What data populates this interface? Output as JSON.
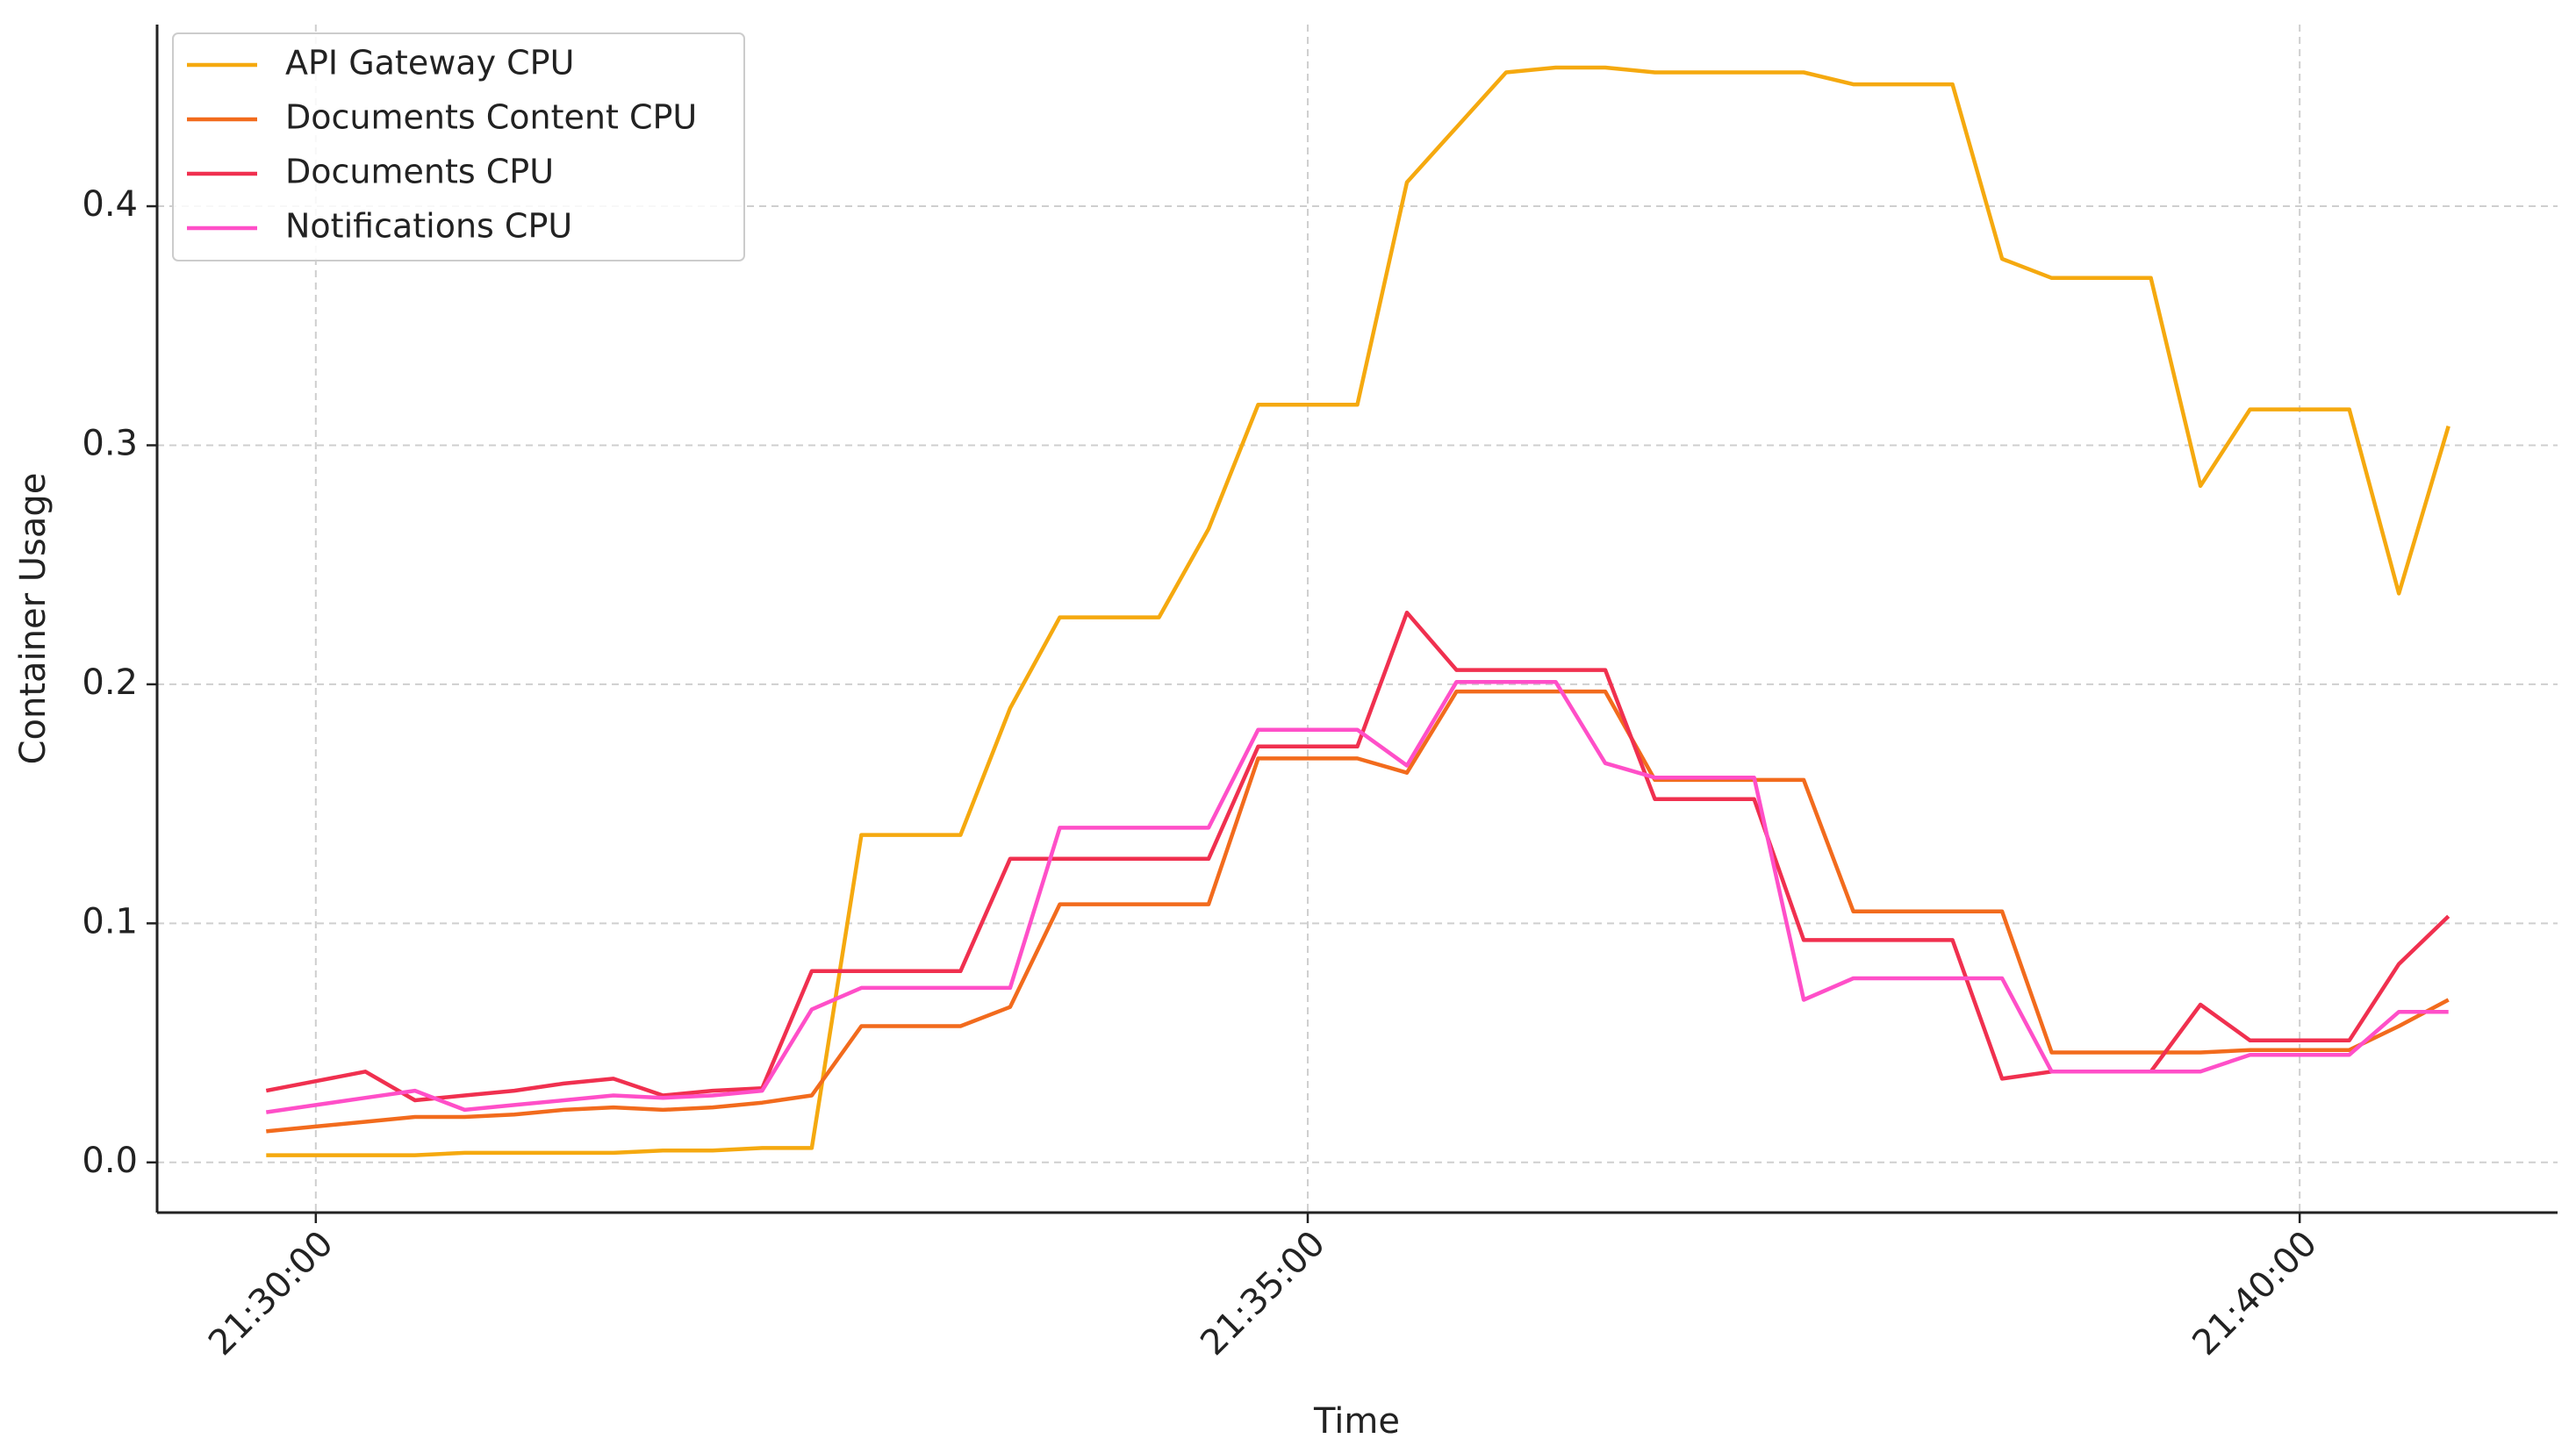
{
  "chart_data": {
    "type": "line",
    "xlabel": "Time",
    "ylabel": "Container Usage",
    "x": [
      "21:29:45",
      "21:30:00",
      "21:30:15",
      "21:30:30",
      "21:30:45",
      "21:31:00",
      "21:31:15",
      "21:31:30",
      "21:31:45",
      "21:32:00",
      "21:32:15",
      "21:32:30",
      "21:32:45",
      "21:33:00",
      "21:33:15",
      "21:33:30",
      "21:33:45",
      "21:34:00",
      "21:34:15",
      "21:34:30",
      "21:34:45",
      "21:35:00",
      "21:35:15",
      "21:35:30",
      "21:35:45",
      "21:36:00",
      "21:36:15",
      "21:36:30",
      "21:36:45",
      "21:37:00",
      "21:37:15",
      "21:37:30",
      "21:37:45",
      "21:38:00",
      "21:38:15",
      "21:38:30",
      "21:38:45",
      "21:39:00",
      "21:39:15",
      "21:39:30",
      "21:39:45",
      "21:40:00",
      "21:40:15",
      "21:40:30",
      "21:40:45"
    ],
    "series": [
      {
        "name": "API Gateway CPU",
        "color": "#f5a90f",
        "values": [
          0.003,
          0.003,
          0.003,
          0.003,
          0.004,
          0.004,
          0.004,
          0.004,
          0.005,
          0.005,
          0.006,
          0.006,
          0.137,
          0.137,
          0.137,
          0.19,
          0.228,
          0.228,
          0.228,
          0.265,
          0.317,
          0.317,
          0.317,
          0.41,
          0.433,
          0.456,
          0.458,
          0.458,
          0.456,
          0.456,
          0.456,
          0.456,
          0.451,
          0.451,
          0.451,
          0.378,
          0.37,
          0.37,
          0.37,
          0.283,
          0.315,
          0.315,
          0.315,
          0.238,
          0.308
        ]
      },
      {
        "name": "Documents Content CPU",
        "color": "#f26b1d",
        "values": [
          0.013,
          0.015,
          0.017,
          0.019,
          0.019,
          0.02,
          0.022,
          0.023,
          0.022,
          0.023,
          0.025,
          0.028,
          0.057,
          0.057,
          0.057,
          0.065,
          0.108,
          0.108,
          0.108,
          0.108,
          0.169,
          0.169,
          0.169,
          0.163,
          0.197,
          0.197,
          0.197,
          0.197,
          0.16,
          0.16,
          0.16,
          0.16,
          0.105,
          0.105,
          0.105,
          0.105,
          0.046,
          0.046,
          0.046,
          0.046,
          0.047,
          0.047,
          0.047,
          0.057,
          0.068
        ]
      },
      {
        "name": "Documents CPU",
        "color": "#f0304f",
        "values": [
          0.03,
          0.034,
          0.038,
          0.026,
          0.028,
          0.03,
          0.033,
          0.035,
          0.028,
          0.03,
          0.031,
          0.08,
          0.08,
          0.08,
          0.08,
          0.127,
          0.127,
          0.127,
          0.127,
          0.127,
          0.174,
          0.174,
          0.174,
          0.23,
          0.206,
          0.206,
          0.206,
          0.206,
          0.152,
          0.152,
          0.152,
          0.093,
          0.093,
          0.093,
          0.093,
          0.035,
          0.038,
          0.038,
          0.038,
          0.066,
          0.051,
          0.051,
          0.051,
          0.083,
          0.103
        ]
      },
      {
        "name": "Notifications CPU",
        "color": "#ff4fc8",
        "values": [
          0.021,
          0.024,
          0.027,
          0.03,
          0.022,
          0.024,
          0.026,
          0.028,
          0.027,
          0.028,
          0.03,
          0.064,
          0.073,
          0.073,
          0.073,
          0.073,
          0.14,
          0.14,
          0.14,
          0.14,
          0.181,
          0.181,
          0.181,
          0.166,
          0.201,
          0.201,
          0.201,
          0.167,
          0.161,
          0.161,
          0.161,
          0.068,
          0.077,
          0.077,
          0.077,
          0.077,
          0.038,
          0.038,
          0.038,
          0.038,
          0.045,
          0.045,
          0.045,
          0.063,
          0.063
        ]
      }
    ],
    "xlim": [
      "21:29:12",
      "21:41:18"
    ],
    "xticks": [
      "21:30:00",
      "21:35:00",
      "21:40:00"
    ],
    "ylim": [
      -0.021,
      0.476
    ],
    "yticks": [
      {
        "value": 0,
        "label": "0.0"
      },
      0.1,
      0.2,
      0.3,
      0.4
    ],
    "grid": true,
    "legend": "upper left"
  }
}
